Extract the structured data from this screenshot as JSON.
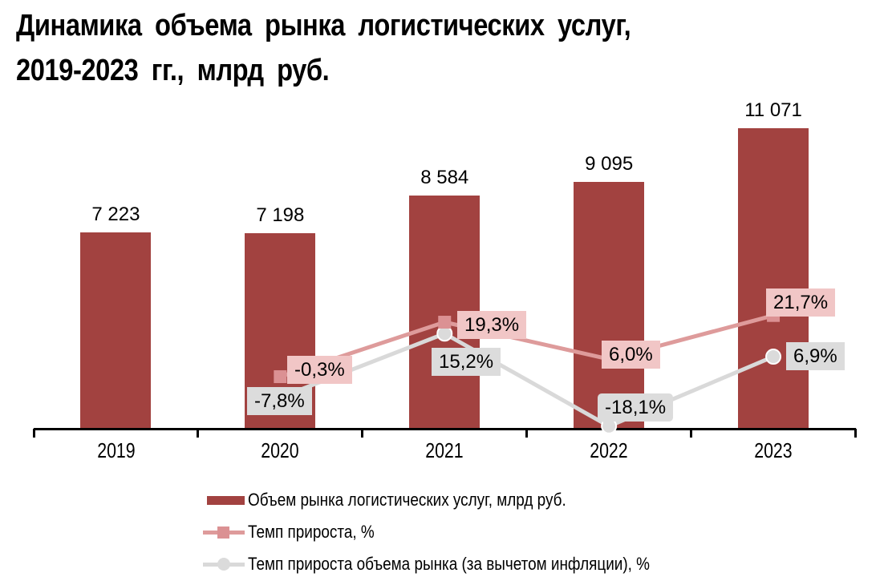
{
  "title": {
    "line1": "Динамика объема рынка логистических услуг,",
    "line2": "2019-2023 гг., млрд руб."
  },
  "chart_data": {
    "type": "combo",
    "subtype": "bars-with-two-lines",
    "categories": [
      "2019",
      "2020",
      "2021",
      "2022",
      "2023"
    ],
    "series": [
      {
        "name": "Объем рынка логистических услуг, млрд руб.",
        "type": "bar",
        "axis": "primary",
        "values": [
          7223,
          7198,
          8584,
          9095,
          11071
        ],
        "labels": [
          "7 223",
          "7 198",
          "8 584",
          "9 095",
          "11 071"
        ]
      },
      {
        "name": "Темп прироста, %",
        "type": "line",
        "axis": "secondary",
        "marker": "square",
        "values": [
          null,
          -0.3,
          19.3,
          6.0,
          21.7
        ],
        "labels": [
          null,
          "-0,3%",
          "19,3%",
          "6,0%",
          "21,7%"
        ]
      },
      {
        "name": "Темп прироста объема рынка (за вычетом инфляции), %",
        "type": "line",
        "axis": "secondary",
        "marker": "circle",
        "values": [
          null,
          -7.8,
          15.2,
          -18.1,
          6.9
        ],
        "labels": [
          null,
          "-7,8%",
          "15,2%",
          "-18,1%",
          "6,9%"
        ]
      }
    ],
    "title": "Динамика объема рынка логистических услуг, 2019-2023 гг., млрд руб.",
    "xlabel": "",
    "ylabel": "",
    "primary_axis": {
      "visible": false,
      "min": 0
    },
    "secondary_axis": {
      "visible": false
    },
    "grid": false,
    "legend_position": "bottom",
    "data_label_style": {
      "bars": "plain text above bar",
      "lines": "filled boxes near markers; 2022 real-growth label is a rounded callout with pointer"
    }
  },
  "colors": {
    "bar": "#A24240",
    "growth_line": "#DE9B9B",
    "growth_marker": "#DB9193",
    "growth_label_bg": "#F1C6C6",
    "real_line": "#D9D9D9",
    "real_marker": "#DBDBDB",
    "real_label_bg": "#DCDCDC",
    "axis": "#000000",
    "text": "#000000"
  }
}
